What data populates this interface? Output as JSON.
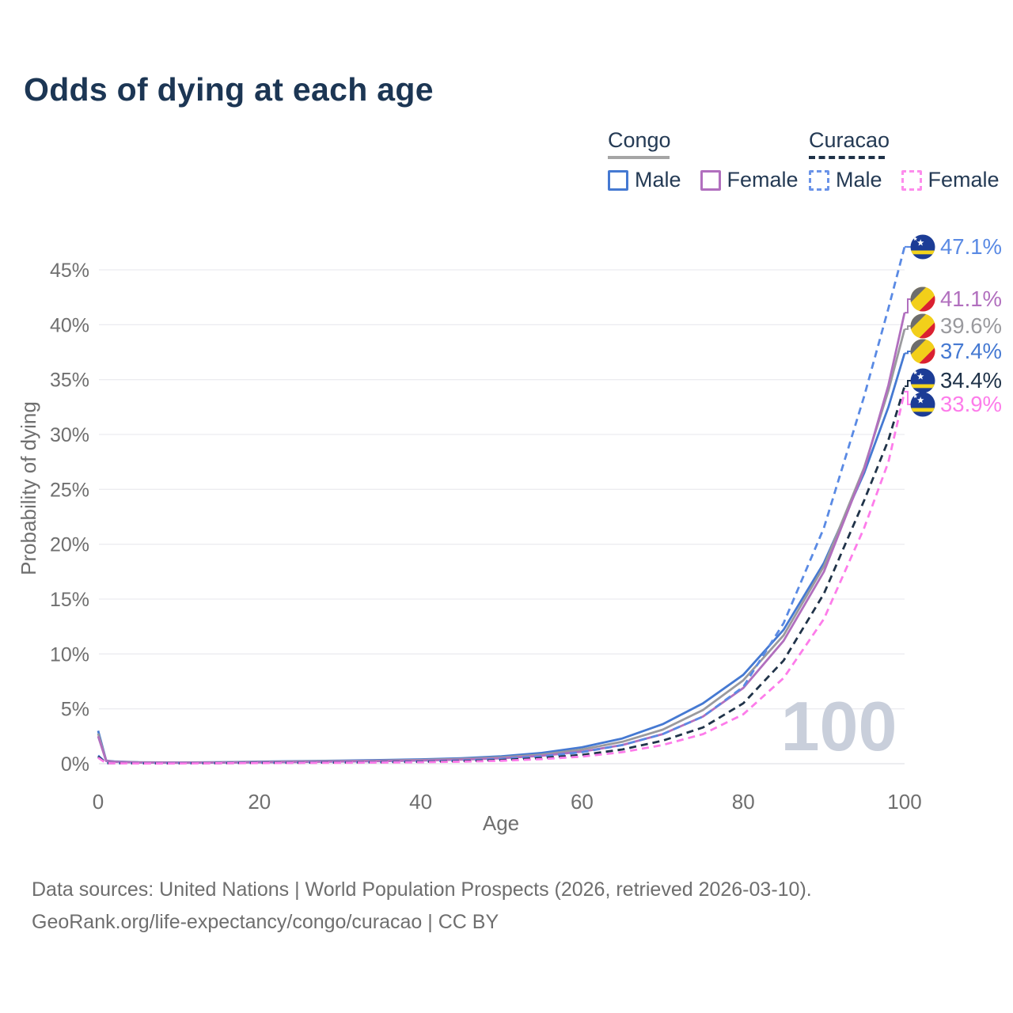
{
  "title": "Odds of dying at each age",
  "legend": {
    "groups": [
      {
        "label": "Congo",
        "dashed": false,
        "underline_color": "#a5a5a5",
        "items": [
          {
            "label": "Male",
            "color": "#4579d2"
          },
          {
            "label": "Female",
            "color": "#b16fbe"
          }
        ]
      },
      {
        "label": "Curacao",
        "dashed": true,
        "underline_color": "#1e3148",
        "items": [
          {
            "label": "Male",
            "color": "#6a93e8"
          },
          {
            "label": "Female",
            "color": "#fd8cec"
          }
        ]
      }
    ]
  },
  "chart_data": {
    "type": "line",
    "title": "Odds of dying at each age",
    "xlabel": "Age",
    "ylabel": "Probability of dying",
    "x_ticks": [
      0,
      20,
      40,
      60,
      80,
      100
    ],
    "y_ticks_percent": [
      0,
      5,
      10,
      15,
      20,
      25,
      30,
      35,
      40,
      45
    ],
    "xlim": [
      0,
      100
    ],
    "ylim_percent": [
      0,
      47.5
    ],
    "grid": "horizontal-light",
    "legend_position": "top-right",
    "watermark": "100",
    "ages": [
      0,
      1,
      2,
      5,
      10,
      15,
      20,
      25,
      30,
      35,
      40,
      45,
      50,
      55,
      60,
      65,
      70,
      75,
      80,
      85,
      90,
      95,
      98,
      100
    ],
    "series": [
      {
        "name": "Curacao Male",
        "country": "Curacao",
        "sex": "Male",
        "color": "#5a8ae4",
        "dash": true,
        "flag": "curacao",
        "end_label": "47.1%",
        "end_value": 47.1,
        "values": [
          0.75,
          0.06,
          0.05,
          0.04,
          0.04,
          0.06,
          0.09,
          0.11,
          0.13,
          0.16,
          0.21,
          0.29,
          0.43,
          0.66,
          1.05,
          1.7,
          2.7,
          4.3,
          7.0,
          12.8,
          21.5,
          33.5,
          41.5,
          47.1
        ]
      },
      {
        "name": "Congo Female",
        "country": "Congo",
        "sex": "Female",
        "color": "#b16fbe",
        "dash": false,
        "flag": "congo",
        "end_label": "41.1%",
        "end_value": 41.1,
        "values": [
          2.5,
          0.24,
          0.17,
          0.11,
          0.09,
          0.1,
          0.13,
          0.16,
          0.2,
          0.24,
          0.29,
          0.37,
          0.5,
          0.72,
          1.1,
          1.7,
          2.7,
          4.3,
          6.9,
          11.2,
          17.5,
          26.8,
          34.5,
          41.1
        ]
      },
      {
        "name": "Congo",
        "country": "Congo",
        "sex": "Both",
        "color": "#9a9a9e",
        "dash": false,
        "flag": "congo",
        "end_label": "39.6%",
        "end_value": 39.6,
        "values": [
          2.75,
          0.26,
          0.18,
          0.12,
          0.1,
          0.12,
          0.16,
          0.2,
          0.24,
          0.28,
          0.34,
          0.43,
          0.58,
          0.83,
          1.3,
          2.0,
          3.1,
          4.9,
          7.6,
          11.7,
          18.0,
          27.0,
          34.0,
          39.6
        ]
      },
      {
        "name": "Congo Male",
        "country": "Congo",
        "sex": "Male",
        "color": "#4579d2",
        "dash": false,
        "flag": "congo",
        "end_label": "37.4%",
        "end_value": 37.4,
        "values": [
          3.0,
          0.28,
          0.2,
          0.13,
          0.11,
          0.14,
          0.19,
          0.23,
          0.28,
          0.33,
          0.4,
          0.5,
          0.68,
          0.98,
          1.5,
          2.3,
          3.6,
          5.5,
          8.1,
          12.2,
          18.3,
          26.5,
          32.5,
          37.4
        ]
      },
      {
        "name": "Curacao",
        "country": "Curacao",
        "sex": "Both",
        "color": "#203349",
        "dash": true,
        "flag": "curacao",
        "end_label": "34.4%",
        "end_value": 34.4,
        "values": [
          0.65,
          0.05,
          0.04,
          0.03,
          0.03,
          0.05,
          0.07,
          0.09,
          0.11,
          0.13,
          0.17,
          0.23,
          0.33,
          0.52,
          0.8,
          1.3,
          2.1,
          3.3,
          5.5,
          9.4,
          15.5,
          24.0,
          29.5,
          34.4
        ]
      },
      {
        "name": "Curacao Female",
        "country": "Curacao",
        "sex": "Female",
        "color": "#fd7cea",
        "dash": true,
        "flag": "curacao",
        "end_label": "33.9%",
        "end_value": 33.9,
        "values": [
          0.55,
          0.045,
          0.035,
          0.025,
          0.025,
          0.04,
          0.055,
          0.07,
          0.085,
          0.105,
          0.135,
          0.19,
          0.27,
          0.42,
          0.65,
          1.05,
          1.7,
          2.7,
          4.5,
          7.8,
          13.2,
          21.5,
          27.5,
          33.9
        ]
      }
    ],
    "flag_colors": {
      "congo": {
        "green_band": "#6d6d6d",
        "yellow_band": "#f2cf1a",
        "red_band": "#da2032"
      },
      "curacao": {
        "field": "#1c3c96",
        "stripe": "#f3d41c",
        "stars": "#ffffff"
      }
    }
  },
  "footer": {
    "line1": "Data sources: United Nations | World Population Prospects (2026, retrieved 2026-03-10).",
    "line2": "GeoRank.org/life-expectancy/congo/curacao | CC BY"
  }
}
